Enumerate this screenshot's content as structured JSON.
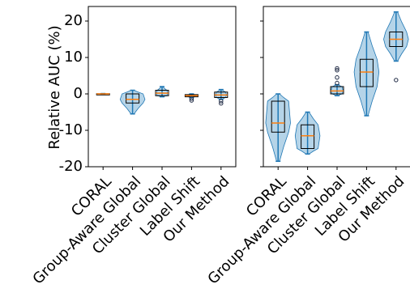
{
  "chart_data": {
    "type": "violin",
    "ylabel": "Relative AUC (%)",
    "ylim": [
      -20,
      24
    ],
    "yticks": [
      {
        "value": 20,
        "label": "20"
      },
      {
        "value": 10,
        "label": "10"
      },
      {
        "value": 0,
        "label": "0"
      },
      {
        "value": -10,
        "label": "-10"
      },
      {
        "value": -20,
        "label": "-20"
      }
    ],
    "shared_y": true,
    "categories": [
      "CORAL",
      "Group-Aware Global",
      "Cluster Global",
      "Label Shift",
      "Our Method"
    ],
    "colors": {
      "violin_fill": "#a8cce4",
      "violin_edge": "#1f77b4",
      "median": "#ff7f0e",
      "box_edge": "#000000"
    },
    "panels": [
      {
        "name": "left",
        "violins": [
          {
            "category": "CORAL",
            "min": -0.1,
            "q1": -0.05,
            "median": 0.0,
            "q3": 0.05,
            "max": 0.1,
            "outliers": []
          },
          {
            "category": "Group-Aware Global",
            "min": -5.5,
            "q1": -2.5,
            "median": -1.5,
            "q3": 0.0,
            "max": 1.0,
            "outliers": []
          },
          {
            "category": "Cluster Global",
            "min": -0.8,
            "q1": -0.5,
            "median": 0.2,
            "q3": 1.0,
            "max": 2.0,
            "outliers": []
          },
          {
            "category": "Label Shift",
            "min": -1.0,
            "q1": -0.8,
            "median": -0.5,
            "q3": -0.2,
            "max": 0.0,
            "outliers": [
              -1.3,
              -1.8
            ]
          },
          {
            "category": "Our Method",
            "min": -1.5,
            "q1": -1.0,
            "median": -0.3,
            "q3": 0.5,
            "max": 1.2,
            "outliers": [
              -2.0,
              -2.6
            ]
          }
        ]
      },
      {
        "name": "right",
        "violins": [
          {
            "category": "CORAL",
            "min": -18.5,
            "q1": -10.5,
            "median": -8.0,
            "q3": -2.0,
            "max": 0.0,
            "outliers": []
          },
          {
            "category": "Group-Aware Global",
            "min": -16.5,
            "q1": -15.0,
            "median": -11.5,
            "q3": -8.5,
            "max": -5.0,
            "outliers": []
          },
          {
            "category": "Cluster Global",
            "min": -0.5,
            "q1": 0.0,
            "median": 0.8,
            "q3": 2.0,
            "max": 2.5,
            "outliers": [
              3.0,
              4.5,
              6.5,
              7.0
            ]
          },
          {
            "category": "Label Shift",
            "min": -6.0,
            "q1": 2.0,
            "median": 6.0,
            "q3": 9.5,
            "max": 17.0,
            "outliers": []
          },
          {
            "category": "Our Method",
            "min": 9.0,
            "q1": 13.0,
            "median": 15.0,
            "q3": 17.0,
            "max": 22.5,
            "outliers": [
              3.8
            ]
          }
        ]
      }
    ]
  }
}
